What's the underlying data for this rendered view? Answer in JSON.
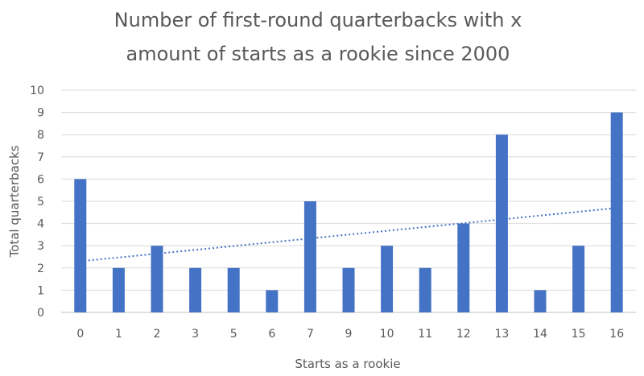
{
  "chart_data": {
    "type": "bar",
    "title_lines": [
      "Number of first-round quarterbacks with x",
      "amount of starts as a rookie since 2000"
    ],
    "xlabel": "Starts as a rookie",
    "ylabel": "Total quarterbacks",
    "categories": [
      "0",
      "1",
      "2",
      "3",
      "5",
      "6",
      "7",
      "9",
      "10",
      "11",
      "12",
      "13",
      "14",
      "15",
      "16"
    ],
    "values": [
      6,
      2,
      3,
      2,
      2,
      1,
      5,
      2,
      3,
      2,
      4,
      8,
      1,
      3,
      9
    ],
    "ylim": [
      0,
      10
    ],
    "yticks": [
      0,
      1,
      2,
      3,
      4,
      5,
      6,
      7,
      8,
      9,
      10
    ],
    "grid": true,
    "legend": "none",
    "trendline": {
      "type": "linear",
      "style": "dotted",
      "start_value": 2.3,
      "end_value": 4.7
    },
    "colors": {
      "bar": "#4472c4",
      "gridline": "#d9d9d9",
      "text": "#595959"
    }
  }
}
